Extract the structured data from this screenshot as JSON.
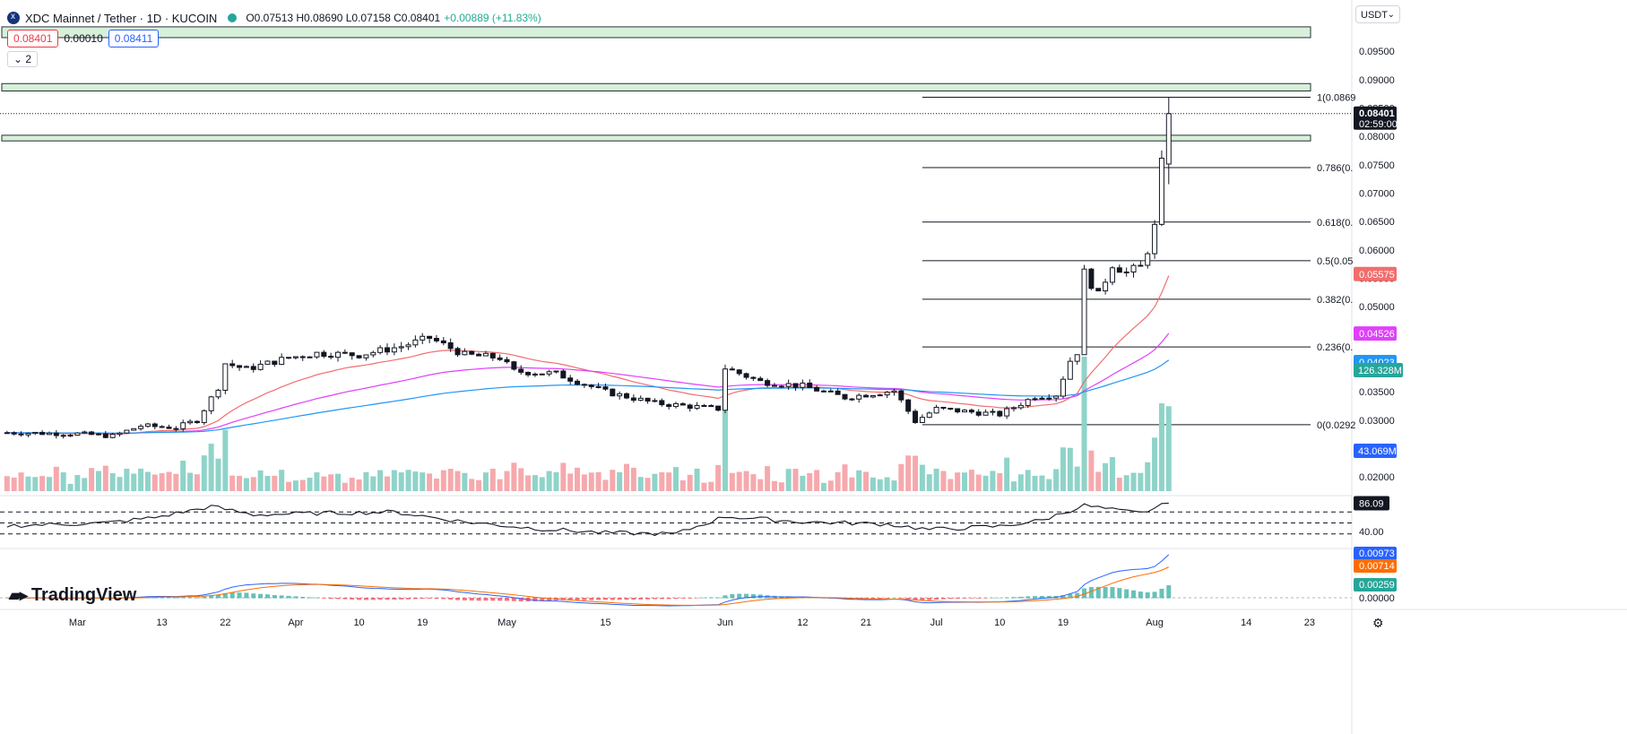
{
  "header": {
    "symbol": "XDC Mainnet / Tether · 1D · KUCOIN",
    "ohlc": "O0.07513 H0.08690 L0.07158 C0.08401",
    "change": "+0.00889 (+11.83%)"
  },
  "quotes": {
    "bid": "0.08401",
    "spread": "0.00010",
    "ask": "0.08411"
  },
  "indicators_collapsed": "2",
  "currency": "USDT",
  "branding": "TradingView",
  "colors": {
    "up": "#26a69a",
    "down": "#f23645",
    "ema_red": "#f26d6d",
    "ema_pink": "#e040fb",
    "ema_blue": "#2196f3",
    "fib_zone": "#d7f0d9"
  },
  "chart_data": [
    {
      "type": "candlestick",
      "title": "XDC Mainnet / Tether · 1D · KUCOIN",
      "ylim": [
        0.0175,
        0.1015
      ],
      "y_ticks": [
        "0.09500",
        "0.09000",
        "0.08500",
        "0.08000",
        "0.07500",
        "0.07000",
        "0.06500",
        "0.06000",
        "0.05500",
        "0.05000",
        "0.04500",
        "0.04000",
        "0.03500",
        "0.03000",
        "0.02500",
        "0.02000"
      ],
      "y_tick_values": [
        0.095,
        0.09,
        0.085,
        0.08,
        0.075,
        0.07,
        0.065,
        0.06,
        0.055,
        0.05,
        0.045,
        0.04,
        0.035,
        0.03,
        0.025,
        0.02
      ],
      "x_labels": [
        {
          "date": "2023-03-01",
          "label": "Mar"
        },
        {
          "date": "2023-03-13",
          "label": "13"
        },
        {
          "date": "2023-03-22",
          "label": "22"
        },
        {
          "date": "2023-04-01",
          "label": "Apr"
        },
        {
          "date": "2023-04-10",
          "label": "10"
        },
        {
          "date": "2023-04-19",
          "label": "19"
        },
        {
          "date": "2023-05-01",
          "label": "May"
        },
        {
          "date": "2023-05-15",
          "label": "15"
        },
        {
          "date": "2023-06-01",
          "label": "Jun"
        },
        {
          "date": "2023-06-12",
          "label": "12"
        },
        {
          "date": "2023-06-21",
          "label": "21"
        },
        {
          "date": "2023-07-01",
          "label": "Jul"
        },
        {
          "date": "2023-07-10",
          "label": "10"
        },
        {
          "date": "2023-07-19",
          "label": "19"
        },
        {
          "date": "2023-08-01",
          "label": "Aug"
        },
        {
          "date": "2023-08-14",
          "label": "14"
        },
        {
          "date": "2023-08-23",
          "label": "23"
        }
      ],
      "x_range": [
        "2023-02-18",
        "2023-08-29"
      ],
      "close_series": {
        "start": "2023-02-19",
        "points": [
          [
            "2023-02-19",
            0.0278
          ],
          [
            "2023-03-01",
            0.0276
          ],
          [
            "2023-03-06",
            0.0272
          ],
          [
            "2023-03-10",
            0.029
          ],
          [
            "2023-03-15",
            0.0287
          ],
          [
            "2023-03-18",
            0.03
          ],
          [
            "2023-03-21",
            0.0358
          ],
          [
            "2023-03-22",
            0.04
          ],
          [
            "2023-03-25",
            0.039
          ],
          [
            "2023-03-31",
            0.041
          ],
          [
            "2023-04-04",
            0.0418
          ],
          [
            "2023-04-10",
            0.0415
          ],
          [
            "2023-04-16",
            0.043
          ],
          [
            "2023-04-20",
            0.0445
          ],
          [
            "2023-04-25",
            0.0415
          ],
          [
            "2023-04-30",
            0.041
          ],
          [
            "2023-05-02",
            0.0386
          ],
          [
            "2023-05-08",
            0.0382
          ],
          [
            "2023-05-15",
            0.035
          ],
          [
            "2023-05-22",
            0.033
          ],
          [
            "2023-05-31",
            0.032
          ],
          [
            "2023-06-01",
            0.0392
          ],
          [
            "2023-06-06",
            0.0368
          ],
          [
            "2023-06-12",
            0.036
          ],
          [
            "2023-06-18",
            0.034
          ],
          [
            "2023-06-25",
            0.0352
          ],
          [
            "2023-06-28",
            0.0298
          ],
          [
            "2023-07-01",
            0.032
          ],
          [
            "2023-07-10",
            0.031
          ],
          [
            "2023-07-15",
            0.0342
          ],
          [
            "2023-07-18",
            0.0345
          ],
          [
            "2023-07-20",
            0.0405
          ],
          [
            "2023-07-21",
            0.042
          ],
          [
            "2023-07-22",
            0.056
          ],
          [
            "2023-07-24",
            0.052
          ],
          [
            "2023-07-26",
            0.0575
          ],
          [
            "2023-07-28",
            0.056
          ],
          [
            "2023-07-30",
            0.057
          ],
          [
            "2023-07-31",
            0.06
          ],
          [
            "2023-08-01",
            0.064
          ],
          [
            "2023-08-02",
            0.0751
          ],
          [
            "2023-08-03",
            0.084
          ]
        ]
      },
      "last_candle": {
        "date": "2023-08-03",
        "open": 0.07513,
        "high": 0.0869,
        "low": 0.07158,
        "close": 0.08401
      },
      "moving_averages": [
        {
          "value": "0.05575",
          "color": "#f26d6d",
          "last": 0.05575
        },
        {
          "value": "0.04526",
          "color": "#e040fb",
          "last": 0.04526
        },
        {
          "value": "0.04023",
          "color": "#2196f3",
          "last": 0.04023
        }
      ],
      "price_label": {
        "value": "0.08401",
        "countdown": "02:59:00"
      },
      "fibonacci": [
        {
          "ratio": "1",
          "label": "1(0.0869",
          "price": 0.0869
        },
        {
          "ratio": "0.786",
          "label": "0.786(0.",
          "price": 0.0745
        },
        {
          "ratio": "0.618",
          "label": "0.618(0.",
          "price": 0.0649
        },
        {
          "ratio": "0.5",
          "label": "0.5(0.05",
          "price": 0.0581
        },
        {
          "ratio": "0.382",
          "label": "0.382(0.",
          "price": 0.0513
        },
        {
          "ratio": "0.236",
          "label": "0.236(0.",
          "price": 0.0429
        },
        {
          "ratio": "0",
          "label": "0(0.0292",
          "price": 0.0292
        }
      ],
      "fib_start_date": "2023-06-29",
      "zones": [
        [
          0.0993,
          0.0974
        ],
        [
          0.0893,
          0.088
        ],
        [
          0.0802,
          0.0792
        ]
      ],
      "volume": {
        "last": "126.328M",
        "ma": "43.069M",
        "last_value": 126.328,
        "ma_value": 43.069
      }
    },
    {
      "type": "line",
      "title": "RSI",
      "value_label": "86.09",
      "level_label": "40.00",
      "levels": [
        70,
        50,
        30
      ],
      "points": [
        [
          "2023-02-19",
          45
        ],
        [
          "2023-03-05",
          50
        ],
        [
          "2023-03-12",
          60
        ],
        [
          "2023-03-20",
          80
        ],
        [
          "2023-03-26",
          65
        ],
        [
          "2023-04-05",
          68
        ],
        [
          "2023-04-15",
          70
        ],
        [
          "2023-04-25",
          52
        ],
        [
          "2023-05-05",
          40
        ],
        [
          "2023-05-15",
          32
        ],
        [
          "2023-05-25",
          30
        ],
        [
          "2023-06-01",
          62
        ],
        [
          "2023-06-12",
          52
        ],
        [
          "2023-06-24",
          48
        ],
        [
          "2023-06-30",
          38
        ],
        [
          "2023-07-10",
          44
        ],
        [
          "2023-07-16",
          55
        ],
        [
          "2023-07-22",
          82
        ],
        [
          "2023-07-27",
          72
        ],
        [
          "2023-07-30",
          68
        ],
        [
          "2023-08-03",
          86.09
        ]
      ]
    },
    {
      "type": "line",
      "title": "MACD",
      "macd_label": "0.00973",
      "signal_label": "0.00714",
      "hist_label": "0.00259",
      "zero_label": "0.00000",
      "macd_last": 0.00973,
      "signal_last": 0.00714,
      "hist_last": 0.00259
    }
  ]
}
